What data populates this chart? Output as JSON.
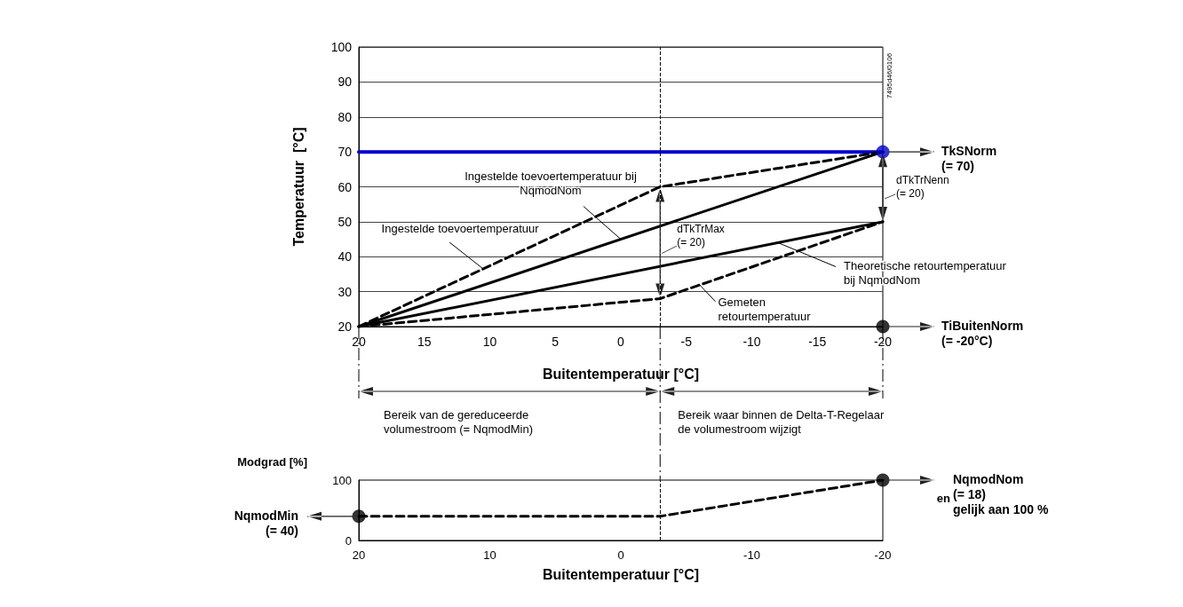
{
  "chart_data": [
    {
      "type": "line",
      "xlabel": "Buitentemperatuur [°C]",
      "ylabel": "Temperatuur  [°C]",
      "xlim": [
        20,
        -20
      ],
      "xticks": [
        20,
        15,
        10,
        5,
        0,
        -5,
        -10,
        -15,
        -20
      ],
      "ylim": [
        20,
        100
      ],
      "yticks": [
        20,
        30,
        40,
        50,
        60,
        70,
        80,
        90,
        100
      ],
      "grid": "y",
      "marker": "none",
      "series": [
        {
          "color": "#0000cc",
          "x": [
            20,
            -20
          ],
          "values": [
            70,
            70
          ],
          "line_style": "solid"
        },
        {
          "color": "#000000",
          "x": [
            20,
            -3,
            -20
          ],
          "values": [
            20,
            60,
            70
          ],
          "line_style": "dashed"
        },
        {
          "color": "#000000",
          "x": [
            20,
            -20
          ],
          "values": [
            20,
            70
          ],
          "line_style": "solid"
        },
        {
          "color": "#000000",
          "x": [
            20,
            -20
          ],
          "values": [
            20,
            50
          ],
          "line_style": "solid"
        },
        {
          "color": "#000000",
          "x": [
            20,
            -3,
            -20
          ],
          "values": [
            20,
            28,
            50
          ],
          "line_style": "dashed"
        },
        {
          "type": "scatter",
          "colors": [
            "#0000cc",
            "#000000"
          ],
          "x": [
            -20,
            -20
          ],
          "values": [
            70,
            20
          ],
          "marker": "circle"
        }
      ],
      "ref_lines": [
        {
          "axis": "x",
          "value": -3,
          "line_style": "dashed",
          "color": "#000000"
        }
      ],
      "annotations": [
        {
          "text": "Ingestelde toevoertemperatuur bij\nNqmodNom",
          "x": 0,
          "y": 45
        },
        {
          "text": "Ingestelde toevoertemperatuur",
          "x": 10.5,
          "y": 36.5
        },
        {
          "text": "dTkTrMax\n(= 20)",
          "x": -3,
          "y": 44
        },
        {
          "text": "Theoretische retourtemperatuur\nbij NqmodNom",
          "x": -12,
          "y": 44
        },
        {
          "text": "Gemeten\nretourtemperatuur",
          "x": -6,
          "y": 32
        },
        "dTkTrNenn\n(= 20)",
        "TkSNorm\n(= 70)",
        "TiBuitenNorm\n(= -20°C)",
        "Bereik van de gereduceerde\nvolumestroom (= NqmodMin)",
        "Bereik waar binnen de Delta-T-Regelaar\nde volumestroom wijzigt",
        "7495d46/0106"
      ]
    },
    {
      "type": "line",
      "xlabel": "Buitentemperatuur [°C]",
      "ylabel": "Modgrad [%]",
      "xlim": [
        20,
        -20
      ],
      "xticks": [
        20,
        10,
        0,
        -10,
        -20
      ],
      "ylim": [
        0,
        100
      ],
      "yticks": [
        0,
        100
      ],
      "grid": false,
      "marker": "none",
      "series": [
        {
          "color": "#000000",
          "x": [
            20,
            -3,
            -20
          ],
          "values": [
            40,
            40,
            100
          ],
          "line_style": "dashed"
        },
        {
          "type": "scatter",
          "colors": [
            "#000000",
            "#000000"
          ],
          "x": [
            20,
            -20
          ],
          "values": [
            40,
            100
          ],
          "marker": "circle"
        }
      ],
      "ref_lines": [
        {
          "axis": "x",
          "value": -3,
          "line_style": "dashed",
          "color": "#000000"
        }
      ],
      "annotations": [
        "NqmodMin\n(= 40)",
        "NqmodNom\n(= 18)\ngelijk aan 100 %",
        "en"
      ]
    }
  ]
}
